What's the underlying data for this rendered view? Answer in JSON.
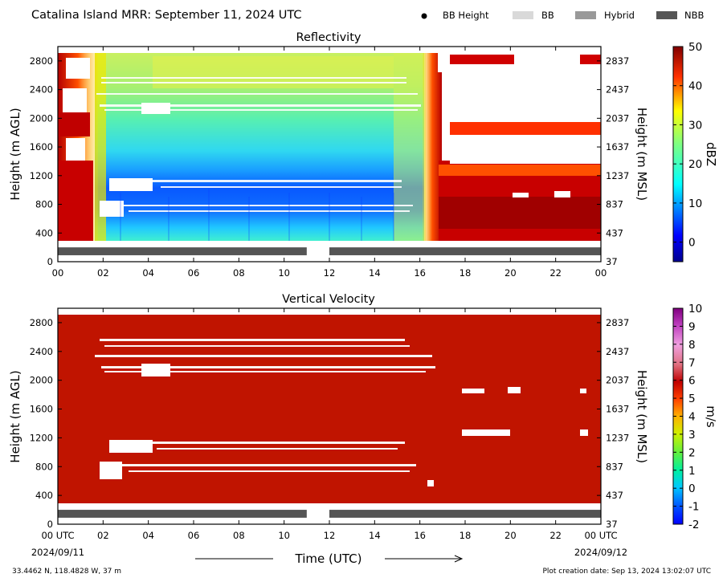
{
  "header": {
    "title": "Catalina Island MRR:  September 11, 2024 UTC",
    "legend": [
      {
        "label": "BB Height",
        "kind": "dot",
        "color": "#000000"
      },
      {
        "label": "BB",
        "kind": "bar",
        "color": "#d9d9d9"
      },
      {
        "label": "Hybrid",
        "kind": "bar",
        "color": "#999999"
      },
      {
        "label": "NBB",
        "kind": "bar",
        "color": "#555555"
      }
    ]
  },
  "chart_data": [
    {
      "type": "heatmap",
      "title": "Reflectivity",
      "ylabel": "Height (m AGL)",
      "ylabel_right": "Height (m MSL)",
      "colorbar": {
        "label": "dBZ",
        "range": [
          -5,
          50
        ],
        "ticks": [
          "50",
          "40",
          "30",
          "20",
          "10",
          "0"
        ],
        "colormap": "jet"
      },
      "xlim": [
        0,
        24
      ],
      "ylim": [
        0,
        3000
      ],
      "x_ticks": [
        "00",
        "02",
        "04",
        "06",
        "08",
        "10",
        "12",
        "14",
        "16",
        "18",
        "20",
        "22",
        "00"
      ],
      "y_ticks": [
        "0",
        "400",
        "800",
        "1200",
        "1600",
        "2000",
        "2400",
        "2800"
      ],
      "y_ticks_right": [
        "37",
        "437",
        "837",
        "1237",
        "1637",
        "2037",
        "2437",
        "2837"
      ],
      "bb_class_bar": [
        {
          "class": "NBB",
          "start_hour": 0,
          "end_hour": 11
        },
        {
          "class": "NBB",
          "start_hour": 12,
          "end_hour": 24
        }
      ],
      "description_regions": [
        {
          "hours": [
            0,
            1.6
          ],
          "height_m": [
            300,
            2950
          ],
          "dbz_range": [
            40,
            50
          ]
        },
        {
          "hours": [
            1.6,
            16.5
          ],
          "height_m": [
            300,
            2950
          ],
          "dbz_range": [
            0,
            25
          ]
        },
        {
          "hours": [
            16.5,
            24
          ],
          "height_m": [
            300,
            1350
          ],
          "dbz_range": [
            40,
            50
          ]
        }
      ]
    },
    {
      "type": "heatmap",
      "title": "Vertical Velocity",
      "xlabel": "Time (UTC)",
      "ylabel": "Height (m AGL)",
      "ylabel_right": "Height (m MSL)",
      "colorbar": {
        "label": "m/s",
        "range": [
          -2,
          10
        ],
        "ticks": [
          "10",
          "9",
          "8",
          "7",
          "6",
          "5",
          "4",
          "3",
          "2",
          "1",
          "0",
          "-1",
          "-2"
        ]
      },
      "xlim": [
        0,
        24
      ],
      "ylim": [
        0,
        3000
      ],
      "x_ticks": [
        "00 UTC",
        "02",
        "04",
        "06",
        "08",
        "10",
        "12",
        "14",
        "16",
        "18",
        "20",
        "22",
        "00 UTC"
      ],
      "x_dates": [
        "2024/09/11",
        "2024/09/12"
      ],
      "y_ticks": [
        "0",
        "400",
        "800",
        "1200",
        "1600",
        "2000",
        "2400",
        "2800"
      ],
      "y_ticks_right": [
        "37",
        "437",
        "837",
        "1237",
        "1637",
        "2037",
        "2437",
        "2837"
      ],
      "dominant_value_ms": 6,
      "bb_class_bar": [
        {
          "class": "NBB",
          "start_hour": 0,
          "end_hour": 11
        },
        {
          "class": "NBB",
          "start_hour": 12,
          "end_hour": 24
        }
      ]
    }
  ],
  "footer": {
    "location": "33.4462 N, 118.4828 W, 37 m",
    "creation": "Plot creation date: Sep 13, 2024 13:02:07 UTC"
  },
  "colors": {
    "vv_fill": "#c01400",
    "nbb": "#555555"
  }
}
